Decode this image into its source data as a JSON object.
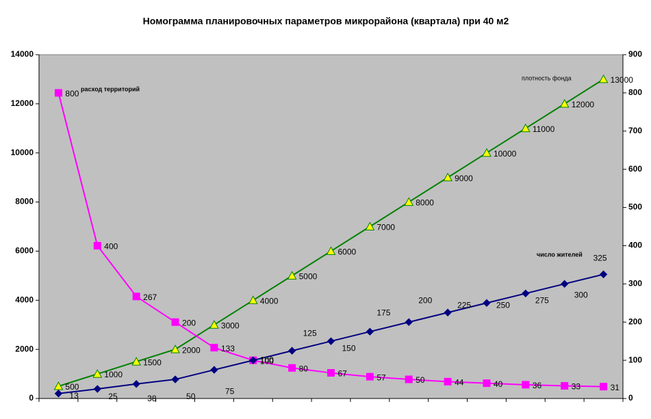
{
  "chart_data": {
    "type": "line",
    "title": "Номограмма планировочных параметров микрорайона (квартала) при 40 м2",
    "ylim": [
      0,
      14000
    ],
    "yticks": [
      0,
      2000,
      4000,
      6000,
      8000,
      10000,
      12000,
      14000
    ],
    "y2lim": [
      0,
      900
    ],
    "y2ticks": [
      0,
      100,
      200,
      300,
      400,
      500,
      600,
      700,
      800,
      900
    ],
    "grid": false,
    "background": "#c0c0c0",
    "series": [
      {
        "name": "плотность фонда",
        "color": "#008000",
        "marker": "triangle",
        "marker_color": "#ffff00",
        "values": [
          500,
          1000,
          1500,
          2000,
          3000,
          4000,
          5000,
          6000,
          7000,
          8000,
          9000,
          10000,
          11000,
          12000,
          13000
        ]
      },
      {
        "name": "расход территорий",
        "color": "#ff00ff",
        "marker": "square",
        "marker_color": "#ff00ff",
        "axis": "y2",
        "values": [
          800,
          400,
          267,
          200,
          133,
          100,
          80,
          67,
          57,
          50,
          44,
          40,
          36,
          33,
          31
        ]
      },
      {
        "name": "число жителей",
        "color": "#000080",
        "marker": "diamond",
        "marker_color": "#000080",
        "axis": "y2",
        "values": [
          13,
          25,
          38,
          50,
          75,
          100,
          125,
          150,
          175,
          200,
          225,
          250,
          275,
          300,
          325
        ]
      }
    ]
  }
}
